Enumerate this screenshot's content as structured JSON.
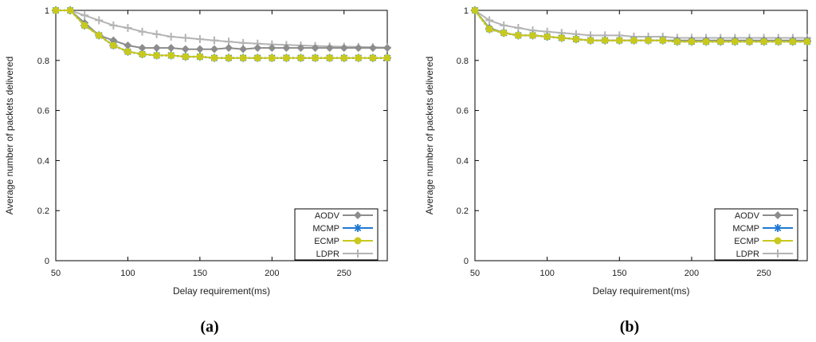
{
  "chart_data": [
    {
      "type": "line",
      "caption": "(a)",
      "xlabel": "Delay requirement(ms)",
      "ylabel": "Average number of packets delivered",
      "xlim": [
        50,
        280
      ],
      "ylim": [
        0,
        1
      ],
      "xticks": [
        50,
        100,
        150,
        200,
        250
      ],
      "yticks": [
        0,
        0.2,
        0.4,
        0.6,
        0.8,
        1
      ],
      "legend_position": "bottom-right",
      "grid": false,
      "x": [
        50,
        60,
        70,
        80,
        90,
        100,
        110,
        120,
        130,
        140,
        150,
        160,
        170,
        180,
        190,
        200,
        210,
        220,
        230,
        240,
        250,
        260,
        270,
        280
      ],
      "series": [
        {
          "name": "AODV",
          "color": "#8c8c8c",
          "marker": "diamond",
          "values": [
            1,
            1,
            0.95,
            0.9,
            0.88,
            0.86,
            0.85,
            0.85,
            0.85,
            0.845,
            0.845,
            0.845,
            0.85,
            0.845,
            0.85,
            0.85,
            0.85,
            0.85,
            0.85,
            0.85,
            0.85,
            0.85,
            0.85,
            0.85
          ]
        },
        {
          "name": "MCMP",
          "color": "#1f78d1",
          "marker": "asterisk",
          "values": [
            1,
            1,
            0.94,
            0.9,
            0.86,
            0.835,
            0.825,
            0.82,
            0.82,
            0.815,
            0.815,
            0.81,
            0.81,
            0.81,
            0.81,
            0.81,
            0.81,
            0.81,
            0.81,
            0.81,
            0.81,
            0.81,
            0.81,
            0.81
          ]
        },
        {
          "name": "ECMP",
          "color": "#c8c81e",
          "marker": "circle",
          "values": [
            1,
            1,
            0.94,
            0.9,
            0.86,
            0.835,
            0.825,
            0.82,
            0.82,
            0.815,
            0.815,
            0.81,
            0.81,
            0.81,
            0.81,
            0.81,
            0.81,
            0.81,
            0.81,
            0.81,
            0.81,
            0.81,
            0.81,
            0.81
          ]
        },
        {
          "name": "LDPR",
          "color": "#b4b4b4",
          "marker": "plus",
          "values": [
            1,
            1,
            0.98,
            0.96,
            0.94,
            0.93,
            0.915,
            0.905,
            0.895,
            0.89,
            0.885,
            0.88,
            0.875,
            0.87,
            0.867,
            0.864,
            0.862,
            0.86,
            0.858,
            0.856,
            0.855,
            0.854,
            0.853,
            0.852
          ]
        }
      ]
    },
    {
      "type": "line",
      "caption": "(b)",
      "xlabel": "Delay requirement(ms)",
      "ylabel": "Average number of packets delivered",
      "xlim": [
        50,
        280
      ],
      "ylim": [
        0,
        1
      ],
      "xticks": [
        50,
        100,
        150,
        200,
        250
      ],
      "yticks": [
        0,
        0.2,
        0.4,
        0.6,
        0.8,
        1
      ],
      "legend_position": "bottom-right",
      "grid": false,
      "x": [
        50,
        60,
        70,
        80,
        90,
        100,
        110,
        120,
        130,
        140,
        150,
        160,
        170,
        180,
        190,
        200,
        210,
        220,
        230,
        240,
        250,
        260,
        270,
        280
      ],
      "series": [
        {
          "name": "AODV",
          "color": "#8c8c8c",
          "marker": "diamond",
          "values": [
            1,
            0.93,
            0.91,
            0.9,
            0.9,
            0.895,
            0.89,
            0.885,
            0.88,
            0.88,
            0.88,
            0.88,
            0.88,
            0.88,
            0.88,
            0.88,
            0.88,
            0.88,
            0.88,
            0.88,
            0.88,
            0.88,
            0.88,
            0.88
          ]
        },
        {
          "name": "MCMP",
          "color": "#1f78d1",
          "marker": "asterisk",
          "values": [
            1,
            0.925,
            0.91,
            0.9,
            0.9,
            0.895,
            0.89,
            0.885,
            0.88,
            0.88,
            0.88,
            0.88,
            0.88,
            0.88,
            0.875,
            0.875,
            0.875,
            0.875,
            0.875,
            0.875,
            0.875,
            0.875,
            0.875,
            0.875
          ]
        },
        {
          "name": "ECMP",
          "color": "#c8c81e",
          "marker": "circle",
          "values": [
            1,
            0.925,
            0.91,
            0.9,
            0.9,
            0.895,
            0.89,
            0.885,
            0.88,
            0.88,
            0.88,
            0.88,
            0.88,
            0.88,
            0.875,
            0.875,
            0.875,
            0.875,
            0.875,
            0.875,
            0.875,
            0.875,
            0.875,
            0.875
          ]
        },
        {
          "name": "LDPR",
          "color": "#b4b4b4",
          "marker": "plus",
          "values": [
            1,
            0.96,
            0.94,
            0.93,
            0.92,
            0.915,
            0.91,
            0.905,
            0.9,
            0.9,
            0.9,
            0.895,
            0.895,
            0.895,
            0.89,
            0.89,
            0.89,
            0.89,
            0.89,
            0.89,
            0.89,
            0.89,
            0.89,
            0.89
          ]
        }
      ]
    }
  ]
}
